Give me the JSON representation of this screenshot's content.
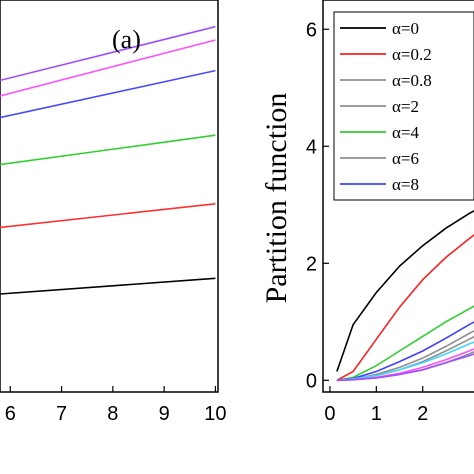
{
  "chart_data": [
    {
      "type": "line",
      "panel_label": "(a)",
      "title": "",
      "xlabel": "",
      "ylabel": "",
      "xlim": [
        5.8,
        10.05
      ],
      "ylim": [
        0,
        10
      ],
      "x_ticks": [
        "6",
        "7",
        "8",
        "9",
        "10"
      ],
      "grid": false,
      "series": [
        {
          "color": "#a050ff",
          "x": [
            5.8,
            10
          ],
          "y": [
            7.95,
            9.32
          ]
        },
        {
          "color": "#ff50ff",
          "x": [
            5.8,
            10
          ],
          "y": [
            7.55,
            8.98
          ]
        },
        {
          "color": "#4a4aff",
          "x": [
            5.8,
            10
          ],
          "y": [
            7.0,
            8.2
          ]
        },
        {
          "color": "#30d030",
          "x": [
            5.8,
            10
          ],
          "y": [
            5.8,
            6.55
          ]
        },
        {
          "color": "#ff3030",
          "x": [
            5.8,
            10
          ],
          "y": [
            4.2,
            4.8
          ]
        },
        {
          "color": "#000000",
          "x": [
            5.8,
            10
          ],
          "y": [
            2.5,
            2.9
          ]
        }
      ]
    },
    {
      "type": "line",
      "title": "",
      "xlabel": "",
      "ylabel": "Partition function",
      "xlim": [
        -0.15,
        3.3
      ],
      "ylim": [
        -0.2,
        6.5
      ],
      "x_ticks": [
        "0",
        "1",
        "2"
      ],
      "y_ticks": [
        "0",
        "2",
        "4",
        "6"
      ],
      "grid": false,
      "legend_position": "top-right",
      "series": [
        {
          "name": "α=0",
          "color": "#000000",
          "x": [
            0.15,
            0.5,
            1.0,
            1.5,
            2.0,
            2.5,
            3.0,
            3.3
          ],
          "y": [
            0.15,
            0.95,
            1.5,
            1.95,
            2.3,
            2.6,
            2.85,
            2.98
          ]
        },
        {
          "name": "α=0.2",
          "color": "#ff2020",
          "x": [
            0.15,
            0.5,
            1.0,
            1.5,
            2.0,
            2.5,
            3.0,
            3.3
          ],
          "y": [
            0.0,
            0.15,
            0.7,
            1.25,
            1.72,
            2.1,
            2.42,
            2.6
          ]
        },
        {
          "name": "α=0.8",
          "color": "#909090",
          "x": [
            0.15,
            0.5,
            1.0,
            1.5,
            2.0,
            2.5,
            3.0,
            3.3
          ],
          "y": [
            0.0,
            0.02,
            0.08,
            0.18,
            0.32,
            0.5,
            0.7,
            0.82
          ]
        },
        {
          "name": "α=2",
          "color": "#909090",
          "x": [
            0.15,
            0.5,
            1.0,
            1.5,
            2.0,
            2.5,
            3.0,
            3.3
          ],
          "y": [
            0.0,
            0.01,
            0.04,
            0.1,
            0.18,
            0.3,
            0.45,
            0.55
          ]
        },
        {
          "name": "α=4",
          "color": "#30d030",
          "x": [
            0.15,
            0.5,
            1.0,
            1.5,
            2.0,
            2.5,
            3.0,
            3.3
          ],
          "y": [
            0.0,
            0.05,
            0.25,
            0.5,
            0.75,
            1.0,
            1.22,
            1.35
          ]
        },
        {
          "name": "α=6",
          "color": "#909090",
          "x": [
            0.15,
            0.5,
            1.0,
            1.5,
            2.0,
            2.5,
            3.0,
            3.3
          ],
          "y": [
            0.0,
            0.02,
            0.1,
            0.22,
            0.38,
            0.58,
            0.8,
            0.92
          ]
        },
        {
          "name": "α=8",
          "color": "#4040ff",
          "x": [
            0.15,
            0.5,
            1.0,
            1.5,
            2.0,
            2.5,
            3.0,
            3.3
          ],
          "y": [
            0.0,
            0.03,
            0.15,
            0.32,
            0.5,
            0.72,
            0.95,
            1.08
          ]
        },
        {
          "color": "#40d8ff",
          "x": [
            0.15,
            0.5,
            1.0,
            1.5,
            2.0,
            2.5,
            3.0,
            3.3
          ],
          "y": [
            0.0,
            0.02,
            0.08,
            0.18,
            0.3,
            0.45,
            0.62,
            0.72
          ]
        },
        {
          "color": "#ff50ff",
          "x": [
            0.15,
            0.5,
            1.0,
            1.5,
            2.0,
            2.5,
            3.0,
            3.3
          ],
          "y": [
            0.0,
            0.01,
            0.05,
            0.12,
            0.22,
            0.35,
            0.5,
            0.6
          ]
        },
        {
          "color": "#a050ff",
          "x": [
            0.15,
            0.5,
            1.0,
            1.5,
            2.0,
            2.5,
            3.0,
            3.3
          ],
          "y": [
            0.0,
            0.01,
            0.04,
            0.1,
            0.18,
            0.3,
            0.42,
            0.5
          ]
        }
      ]
    }
  ]
}
